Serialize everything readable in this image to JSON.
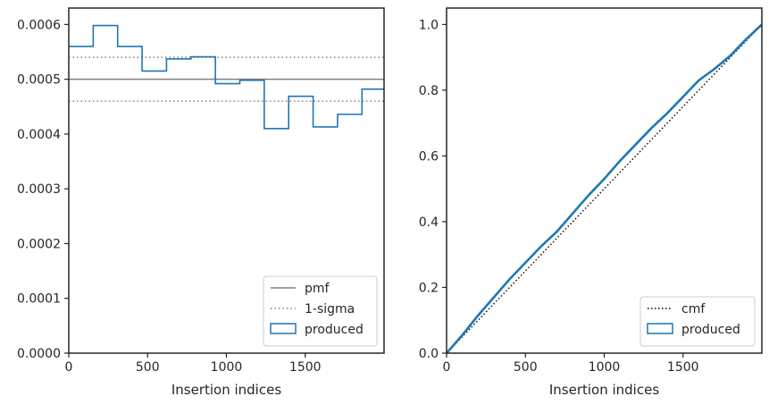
{
  "colors": {
    "produced": "#1f77b4",
    "pmf": "#808080",
    "sigma": "#808080",
    "cmf": "#000000",
    "axes": "#262626"
  },
  "chart_data": [
    {
      "type": "histogram-step",
      "xlabel": "Insertion indices",
      "ylabel": "",
      "xlim": [
        0,
        2000
      ],
      "ylim": [
        0,
        0.00063
      ],
      "xticks": [
        0,
        500,
        1000,
        1500
      ],
      "xtick_labels": [
        "0",
        "500",
        "1000",
        "1500"
      ],
      "yticks": [
        0,
        0.0001,
        0.0002,
        0.0003,
        0.0004,
        0.0005,
        0.0006
      ],
      "ytick_labels": [
        "0.0000",
        "0.0001",
        "0.0002",
        "0.0003",
        "0.0004",
        "0.0005",
        "0.0006"
      ],
      "bin_edges": [
        0,
        155,
        310,
        465,
        620,
        775,
        930,
        1085,
        1240,
        1395,
        1550,
        1705,
        1860,
        2000
      ],
      "series": [
        {
          "name": "pmf",
          "style": "solid",
          "y": 0.0005
        },
        {
          "name": "1-sigma",
          "style": "dotted",
          "y": [
            0.00046,
            0.00054
          ]
        },
        {
          "name": "produced",
          "style": "step",
          "values": [
            0.00056,
            0.000598,
            0.00056,
            0.000515,
            0.000537,
            0.000541,
            0.000492,
            0.000498,
            0.00041,
            0.000469,
            0.000413,
            0.000436,
            0.000482
          ]
        }
      ],
      "legend_position": "lower-right",
      "legend": [
        "pmf",
        "1-sigma",
        "produced"
      ]
    },
    {
      "type": "line",
      "xlabel": "Insertion indices",
      "ylabel": "",
      "xlim": [
        0,
        2000
      ],
      "ylim": [
        0,
        1.05
      ],
      "xticks": [
        0,
        500,
        1000,
        1500
      ],
      "xtick_labels": [
        "0",
        "500",
        "1000",
        "1500"
      ],
      "yticks": [
        0,
        0.2,
        0.4,
        0.6,
        0.8,
        1.0
      ],
      "ytick_labels": [
        "0.0",
        "0.2",
        "0.4",
        "0.6",
        "0.8",
        "1.0"
      ],
      "series": [
        {
          "name": "cmf",
          "style": "dotted",
          "x": [
            0,
            2000
          ],
          "y": [
            0,
            1.0
          ]
        },
        {
          "name": "produced",
          "style": "solid",
          "x": [
            0,
            100,
            200,
            300,
            400,
            500,
            600,
            700,
            800,
            900,
            1000,
            1100,
            1200,
            1300,
            1400,
            1500,
            1600,
            1700,
            1800,
            1900,
            2000
          ],
          "y": [
            0,
            0.055,
            0.115,
            0.17,
            0.225,
            0.275,
            0.325,
            0.37,
            0.425,
            0.48,
            0.53,
            0.585,
            0.635,
            0.685,
            0.73,
            0.78,
            0.83,
            0.865,
            0.905,
            0.955,
            1.0
          ]
        }
      ],
      "legend_position": "lower-right",
      "legend": [
        "cmf",
        "produced"
      ]
    }
  ]
}
